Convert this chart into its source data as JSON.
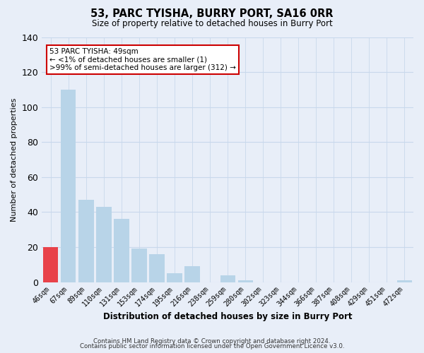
{
  "title": "53, PARC TYISHA, BURRY PORT, SA16 0RR",
  "subtitle": "Size of property relative to detached houses in Burry Port",
  "xlabel": "Distribution of detached houses by size in Burry Port",
  "ylabel": "Number of detached properties",
  "bar_labels": [
    "46sqm",
    "67sqm",
    "89sqm",
    "110sqm",
    "131sqm",
    "153sqm",
    "174sqm",
    "195sqm",
    "216sqm",
    "238sqm",
    "259sqm",
    "280sqm",
    "302sqm",
    "323sqm",
    "344sqm",
    "366sqm",
    "387sqm",
    "408sqm",
    "429sqm",
    "451sqm",
    "472sqm"
  ],
  "bar_values": [
    20,
    110,
    47,
    43,
    36,
    19,
    16,
    5,
    9,
    0,
    4,
    1,
    0,
    0,
    0,
    0,
    0,
    0,
    0,
    0,
    1
  ],
  "bar_color": "#b8d4e8",
  "highlight_color": "#e8424a",
  "highlight_index": 0,
  "ylim": [
    0,
    140
  ],
  "yticks": [
    0,
    20,
    40,
    60,
    80,
    100,
    120,
    140
  ],
  "annotation_box_title": "53 PARC TYISHA: 49sqm",
  "annotation_line1": "← <1% of detached houses are smaller (1)",
  "annotation_line2": ">99% of semi-detached houses are larger (312) →",
  "annotation_box_color": "#ffffff",
  "annotation_box_edge": "#cc0000",
  "footer_line1": "Contains HM Land Registry data © Crown copyright and database right 2024.",
  "footer_line2": "Contains public sector information licensed under the Open Government Licence v3.0.",
  "background_color": "#e8eef8",
  "grid_color": "#c8d8ec"
}
